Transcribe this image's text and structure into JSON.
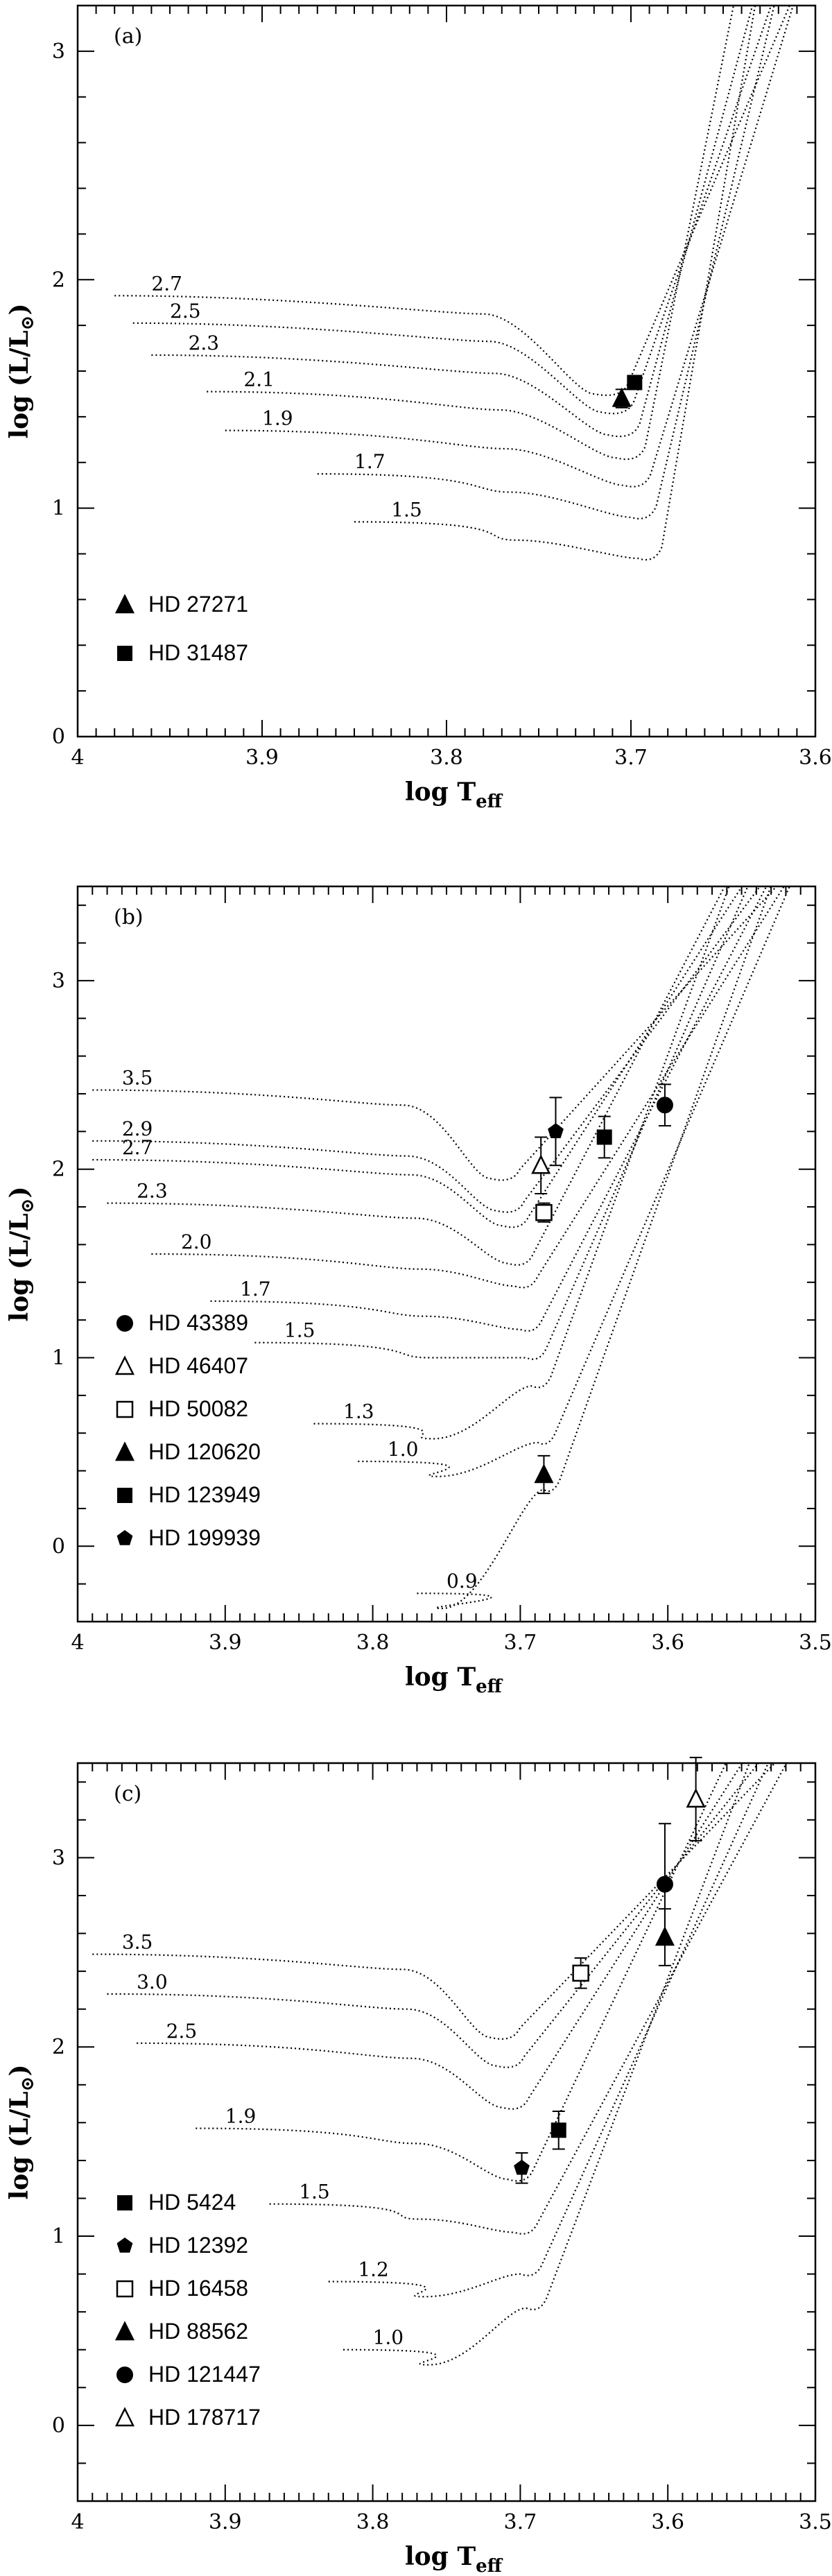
{
  "chart_data": [
    {
      "type": "scatter",
      "panel_label": "(a)",
      "xlabel": "log T",
      "xlabel_sub": "eff",
      "ylabel": "log (L/L",
      "ylabel_sub": "⊙",
      "ylabel_close": ")",
      "xlim": [
        4.0,
        3.6
      ],
      "ylim": [
        0,
        3.2
      ],
      "xticks": [
        4.0,
        3.9,
        3.8,
        3.7,
        3.6
      ],
      "xtick_labels": [
        "4",
        "3.9",
        "3.8",
        "3.7",
        "3.6"
      ],
      "yticks": [
        0,
        1,
        2,
        3
      ],
      "ytick_labels": [
        "0",
        "1",
        "2",
        "3"
      ],
      "tracks": [
        {
          "mass": "2.7",
          "tx": 3.96,
          "hook_y": 1.5,
          "start_y": 1.93
        },
        {
          "mass": "2.5",
          "tx": 3.95,
          "hook_y": 1.42,
          "start_y": 1.81
        },
        {
          "mass": "2.3",
          "tx": 3.94,
          "hook_y": 1.32,
          "start_y": 1.67
        },
        {
          "mass": "2.1",
          "tx": 3.91,
          "hook_y": 1.22,
          "start_y": 1.51
        },
        {
          "mass": "1.9",
          "tx": 3.9,
          "hook_y": 1.1,
          "start_y": 1.34
        },
        {
          "mass": "1.7",
          "tx": 3.85,
          "hook_y": 0.96,
          "start_y": 1.15
        },
        {
          "mass": "1.5",
          "tx": 3.83,
          "hook_y": 0.78,
          "start_y": 0.94
        }
      ],
      "stars": [
        {
          "name": "HD 27271",
          "symbol": "filled-triangle",
          "logT": 3.705,
          "logL": 1.48,
          "err": 0.04
        },
        {
          "name": "HD 31487",
          "symbol": "filled-square",
          "logT": 3.698,
          "logL": 1.55,
          "err": 0.03
        }
      ]
    },
    {
      "type": "scatter",
      "panel_label": "(b)",
      "xlabel": "log T",
      "xlabel_sub": "eff",
      "ylabel": "log (L/L",
      "ylabel_sub": "⊙",
      "ylabel_close": ")",
      "xlim": [
        4.0,
        3.5
      ],
      "ylim": [
        -0.4,
        3.5
      ],
      "xticks": [
        4.0,
        3.9,
        3.8,
        3.7,
        3.6,
        3.5
      ],
      "xtick_labels": [
        "4",
        "3.9",
        "3.8",
        "3.7",
        "3.6",
        "3.5"
      ],
      "yticks": [
        0,
        1,
        2,
        3
      ],
      "ytick_labels": [
        "0",
        "1",
        "2",
        "3"
      ],
      "tracks": [
        {
          "mass": "3.5",
          "tx": 3.97,
          "hook_y": 1.95,
          "start_y": 2.42
        },
        {
          "mass": "2.9",
          "tx": 3.97,
          "hook_y": 1.78,
          "start_y": 2.15
        },
        {
          "mass": "2.7",
          "tx": 3.97,
          "hook_y": 1.7,
          "start_y": 2.05
        },
        {
          "mass": "2.3",
          "tx": 3.96,
          "hook_y": 1.5,
          "start_y": 1.82
        },
        {
          "mass": "2.0",
          "tx": 3.93,
          "hook_y": 1.38,
          "start_y": 1.55
        },
        {
          "mass": "1.7",
          "tx": 3.89,
          "hook_y": 1.15,
          "start_y": 1.3
        },
        {
          "mass": "1.5",
          "tx": 3.86,
          "hook_y": 1.0,
          "start_y": 1.08
        },
        {
          "mass": "1.3",
          "tx": 3.82,
          "hook_y": 0.85,
          "start_y": 0.65
        },
        {
          "mass": "1.0",
          "tx": 3.79,
          "hook_y": 0.55,
          "start_y": 0.45
        },
        {
          "mass": "0.9",
          "tx": 3.75,
          "hook_y": 0.3,
          "start_y": -0.25
        }
      ],
      "stars": [
        {
          "name": "HD 43389",
          "symbol": "filled-circle",
          "logT": 3.602,
          "logL": 2.34,
          "err": 0.11
        },
        {
          "name": "HD 46407",
          "symbol": "open-triangle",
          "logT": 3.686,
          "logL": 2.02,
          "err": 0.15
        },
        {
          "name": "HD 50082",
          "symbol": "open-square",
          "logT": 3.684,
          "logL": 1.77,
          "err": 0.05
        },
        {
          "name": "HD 120620",
          "symbol": "filled-triangle",
          "logT": 3.684,
          "logL": 0.38,
          "err": 0.1
        },
        {
          "name": "HD 123949",
          "symbol": "filled-square",
          "logT": 3.643,
          "logL": 2.17,
          "err": 0.11
        },
        {
          "name": "HD 199939",
          "symbol": "filled-pentagon",
          "logT": 3.676,
          "logL": 2.2,
          "err": 0.18
        }
      ]
    },
    {
      "type": "scatter",
      "panel_label": "(c)",
      "xlabel": "log T",
      "xlabel_sub": "eff",
      "ylabel": "log (L/L",
      "ylabel_sub": "⊙",
      "ylabel_close": ")",
      "xlim": [
        4.0,
        3.5
      ],
      "ylim": [
        -0.4,
        3.5
      ],
      "xticks": [
        4.0,
        3.9,
        3.8,
        3.7,
        3.6,
        3.5
      ],
      "xtick_labels": [
        "4",
        "3.9",
        "3.8",
        "3.7",
        "3.6",
        "3.5"
      ],
      "yticks": [
        0,
        1,
        2,
        3
      ],
      "ytick_labels": [
        "0",
        "1",
        "2",
        "3"
      ],
      "tracks": [
        {
          "mass": "3.5",
          "tx": 3.97,
          "hook_y": 2.05,
          "start_y": 2.49
        },
        {
          "mass": "3.0",
          "tx": 3.96,
          "hook_y": 1.9,
          "start_y": 2.28
        },
        {
          "mass": "2.5",
          "tx": 3.94,
          "hook_y": 1.68,
          "start_y": 2.02
        },
        {
          "mass": "1.9",
          "tx": 3.9,
          "hook_y": 1.3,
          "start_y": 1.57
        },
        {
          "mass": "1.5",
          "tx": 3.85,
          "hook_y": 1.02,
          "start_y": 1.17
        },
        {
          "mass": "1.2",
          "tx": 3.81,
          "hook_y": 0.8,
          "start_y": 0.76
        },
        {
          "mass": "1.0",
          "tx": 3.8,
          "hook_y": 0.62,
          "start_y": 0.4
        }
      ],
      "stars": [
        {
          "name": "HD 5424",
          "symbol": "filled-square",
          "logT": 3.674,
          "logL": 1.56,
          "err": 0.1
        },
        {
          "name": "HD 12392",
          "symbol": "filled-pentagon",
          "logT": 3.699,
          "logL": 1.36,
          "err": 0.08
        },
        {
          "name": "HD 16458",
          "symbol": "open-square",
          "logT": 3.659,
          "logL": 2.39,
          "err": 0.08
        },
        {
          "name": "HD 88562",
          "symbol": "filled-triangle",
          "logT": 3.602,
          "logL": 2.58,
          "err": 0.15
        },
        {
          "name": "HD 121447",
          "symbol": "filled-circle",
          "logT": 3.602,
          "logL": 2.86,
          "err": 0.32
        },
        {
          "name": "HD 178717",
          "symbol": "open-triangle",
          "logT": 3.581,
          "logL": 3.31,
          "err": 0.22
        }
      ]
    }
  ]
}
